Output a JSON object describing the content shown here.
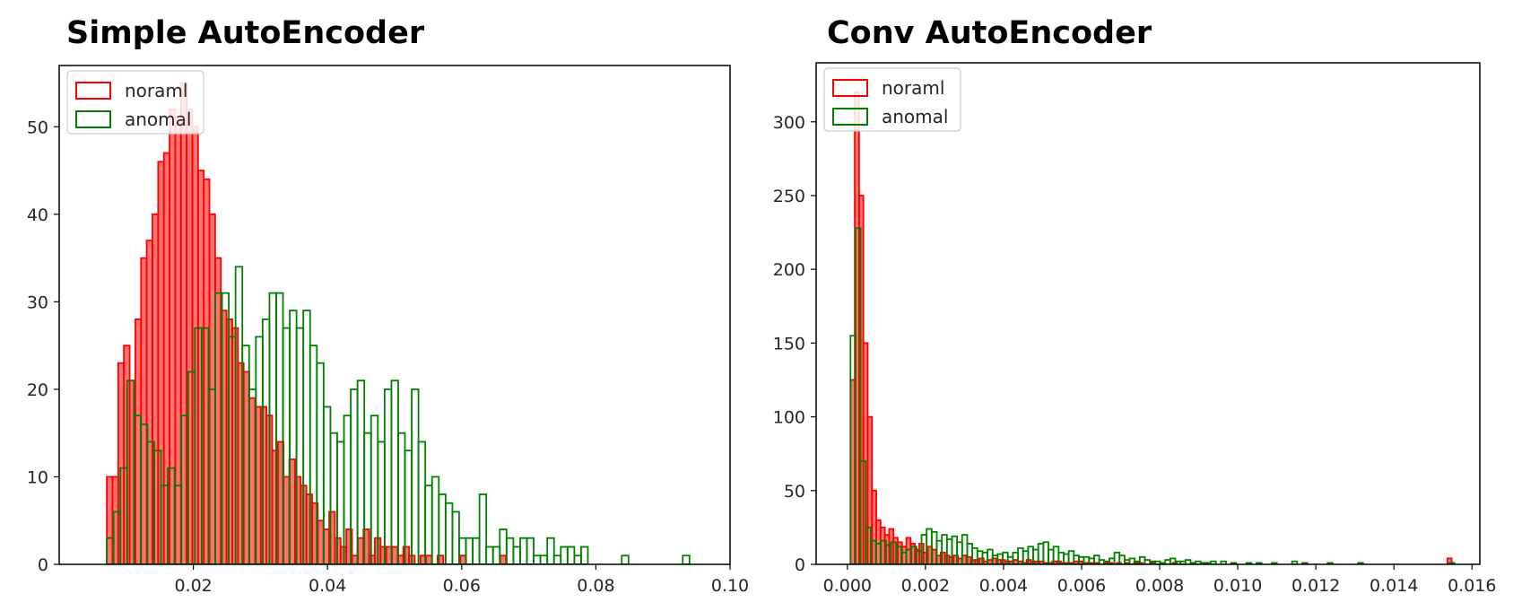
{
  "colors": {
    "normal": "#ff0000",
    "anomal": "#008000",
    "normal_fill": "rgba(255,0,0,0.55)"
  },
  "chart_data": [
    {
      "type": "histogram",
      "title": "Simple AutoEncoder",
      "legend": {
        "placement": "upper-left",
        "entries": [
          "noraml",
          "anomal"
        ]
      },
      "xlim": [
        0.0,
        0.1
      ],
      "ylim": [
        0,
        57
      ],
      "xticks": [
        0.02,
        0.04,
        0.06,
        0.08,
        0.1
      ],
      "xtick_labels": [
        "0.02",
        "0.04",
        "0.06",
        "0.08",
        "0.10"
      ],
      "yticks": [
        0,
        10,
        20,
        30,
        40,
        50
      ],
      "ytick_labels": [
        "0",
        "10",
        "20",
        "30",
        "40",
        "50"
      ],
      "series": [
        {
          "name": "noraml",
          "bin_start": 0.0071,
          "bin_width": 0.00085,
          "counts": [
            10,
            10,
            23,
            25,
            21,
            28,
            35,
            37,
            40,
            46,
            47,
            52,
            51,
            55,
            52,
            50,
            45,
            44,
            40,
            35,
            29,
            28,
            27,
            23,
            22,
            19,
            18,
            18,
            17,
            13,
            14,
            10,
            12,
            10,
            9,
            8,
            7,
            5,
            4,
            6,
            3,
            2,
            4,
            1,
            3,
            4,
            1,
            3,
            2,
            2,
            2,
            1,
            2,
            1,
            0,
            1,
            1,
            0,
            1,
            0,
            0,
            0,
            1,
            0,
            0,
            0,
            0,
            0,
            0,
            1
          ]
        },
        {
          "name": "anomal",
          "bin_start": 0.0071,
          "bin_width": 0.00101,
          "counts": [
            3,
            6,
            11,
            21,
            17,
            16,
            14,
            13,
            9,
            11,
            9,
            17,
            22,
            27,
            27,
            20,
            31,
            31,
            26,
            34,
            25,
            20,
            26,
            28,
            31,
            31,
            27,
            29,
            27,
            29,
            25,
            23,
            18,
            15,
            14,
            17,
            20,
            21,
            15,
            17,
            14,
            20,
            21,
            15,
            13,
            20,
            14,
            9,
            10,
            8,
            7,
            6,
            3,
            3,
            3,
            8,
            2,
            2,
            4,
            3,
            2,
            3,
            3,
            1,
            1,
            3,
            1,
            2,
            2,
            1,
            2,
            0,
            0,
            0,
            0,
            0,
            1,
            0,
            0,
            0,
            0,
            0,
            0,
            0,
            0,
            1,
            0,
            0,
            0,
            0,
            0,
            0,
            0,
            0,
            0,
            0,
            0,
            0,
            0,
            1
          ]
        }
      ]
    },
    {
      "type": "histogram",
      "title": "Conv AutoEncoder",
      "legend": {
        "placement": "upper-left",
        "entries": [
          "noraml",
          "anomal"
        ]
      },
      "xlim": [
        -0.0008,
        0.0162
      ],
      "ylim": [
        0,
        340
      ],
      "xticks": [
        0.0,
        0.002,
        0.004,
        0.006,
        0.008,
        0.01,
        0.012,
        0.014,
        0.016
      ],
      "xtick_labels": [
        "0.000",
        "0.002",
        "0.004",
        "0.006",
        "0.008",
        "0.010",
        "0.012",
        "0.014",
        "0.016"
      ],
      "yticks": [
        0,
        50,
        100,
        150,
        200,
        250,
        300
      ],
      "yticks_labels_note": "",
      "ytick_labels": [
        "0",
        "50",
        "100",
        "150",
        "200",
        "250",
        "300"
      ],
      "series": [
        {
          "name": "noraml",
          "bin_start": 8e-05,
          "bin_width": 0.00011,
          "counts": [
            125,
            320,
            250,
            150,
            100,
            50,
            30,
            25,
            20,
            24,
            18,
            15,
            12,
            18,
            14,
            10,
            14,
            8,
            12,
            10,
            6,
            8,
            6,
            5,
            6,
            4,
            6,
            5,
            3,
            3,
            4,
            2,
            3,
            4,
            3,
            3,
            2,
            2,
            3,
            2,
            1,
            3,
            2,
            2,
            2,
            1,
            1,
            2,
            2,
            1,
            1,
            1,
            2,
            2,
            1,
            1,
            1,
            1,
            0,
            1,
            1,
            0,
            1,
            0,
            1,
            0,
            1,
            1,
            0,
            0,
            1,
            0,
            0,
            0,
            0,
            1,
            0,
            0,
            0,
            0,
            0,
            0,
            0,
            0,
            0,
            0,
            0,
            0,
            0,
            0,
            0,
            0,
            0,
            0,
            0,
            0,
            0,
            0,
            0,
            0,
            0,
            0,
            0,
            0,
            0,
            0,
            0,
            0,
            0,
            0,
            0,
            0,
            0,
            0,
            0,
            0,
            0,
            0,
            0,
            0,
            0,
            0,
            0,
            0,
            0,
            0,
            0,
            0,
            0,
            0,
            0,
            0,
            0,
            0,
            0,
            0,
            0,
            0,
            0,
            4
          ]
        },
        {
          "name": "anomal",
          "bin_start": 8e-05,
          "bin_width": 0.00013,
          "counts": [
            155,
            228,
            70,
            25,
            16,
            14,
            16,
            13,
            15,
            12,
            8,
            10,
            12,
            9,
            20,
            24,
            22,
            16,
            20,
            17,
            19,
            15,
            20,
            14,
            11,
            9,
            8,
            10,
            6,
            7,
            8,
            5,
            8,
            11,
            9,
            12,
            10,
            14,
            15,
            10,
            12,
            8,
            7,
            9,
            6,
            5,
            5,
            4,
            6,
            3,
            2,
            4,
            8,
            6,
            3,
            4,
            2,
            5,
            3,
            2,
            2,
            1,
            3,
            4,
            2,
            2,
            3,
            1,
            2,
            1,
            1,
            2,
            0,
            2,
            0,
            1,
            0,
            0,
            1,
            0,
            1,
            0,
            0,
            1,
            0,
            0,
            0,
            2,
            0,
            1,
            0,
            0,
            0,
            0,
            1,
            0,
            0,
            0,
            0,
            0,
            1,
            0,
            0,
            0,
            0,
            0,
            0,
            0,
            0,
            0,
            0,
            0,
            0,
            0,
            0,
            0,
            0,
            0,
            1
          ]
        }
      ]
    }
  ]
}
